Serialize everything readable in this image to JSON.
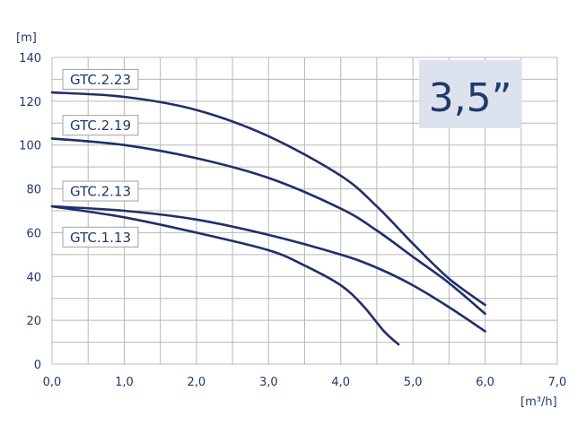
{
  "chart_data": {
    "type": "line",
    "title": "",
    "xlabel": "",
    "ylabel": "",
    "x_unit": "[m³/h]",
    "y_unit": "[m]",
    "xlim": [
      0,
      7
    ],
    "ylim": [
      0,
      140
    ],
    "x_ticks": [
      0,
      1,
      2,
      3,
      4,
      5,
      6,
      7
    ],
    "x_tick_labels": [
      "0,0",
      "1,0",
      "2,0",
      "3,0",
      "4,0",
      "5,0",
      "6,0",
      "7,0"
    ],
    "y_ticks": [
      0,
      20,
      40,
      60,
      80,
      100,
      120,
      140
    ],
    "y_tick_labels": [
      "0",
      "20",
      "40",
      "60",
      "80",
      "100",
      "120",
      "140"
    ],
    "grid": true,
    "badge": "3,5”",
    "series": [
      {
        "name": "GTC.2.23",
        "x": [
          0,
          1.0,
          2.0,
          3.0,
          4.0,
          4.5,
          5.0,
          5.5,
          6.0
        ],
        "y": [
          124,
          122,
          116,
          104,
          86,
          72,
          55,
          39,
          27
        ]
      },
      {
        "name": "GTC.2.19",
        "x": [
          0,
          1.0,
          2.0,
          3.0,
          4.0,
          4.5,
          5.0,
          5.5,
          6.0
        ],
        "y": [
          103,
          100,
          94,
          85,
          71,
          61,
          49,
          37,
          23
        ]
      },
      {
        "name": "GTC.2.13",
        "x": [
          0,
          1.0,
          2.0,
          3.0,
          4.0,
          4.5,
          5.0,
          5.5,
          6.0
        ],
        "y": [
          72,
          70,
          66,
          59,
          50,
          44,
          36,
          26,
          15
        ]
      },
      {
        "name": "GTC.1.13",
        "x": [
          0,
          1.0,
          2.0,
          3.0,
          3.5,
          4.0,
          4.3,
          4.6,
          4.8
        ],
        "y": [
          72,
          67,
          60,
          52,
          45,
          36,
          27,
          15,
          9
        ]
      }
    ],
    "label_anchor_y": {
      "GTC.2.23": 130,
      "GTC.2.19": 109,
      "GTC.2.13": 79,
      "GTC.1.13": 58
    },
    "colors": {
      "line": "#1f2f6b",
      "grid": "#b8b8b8",
      "text": "#1f3a6b",
      "badge_bg": "#dce3ee",
      "label_border": "#a0a0a0"
    }
  }
}
